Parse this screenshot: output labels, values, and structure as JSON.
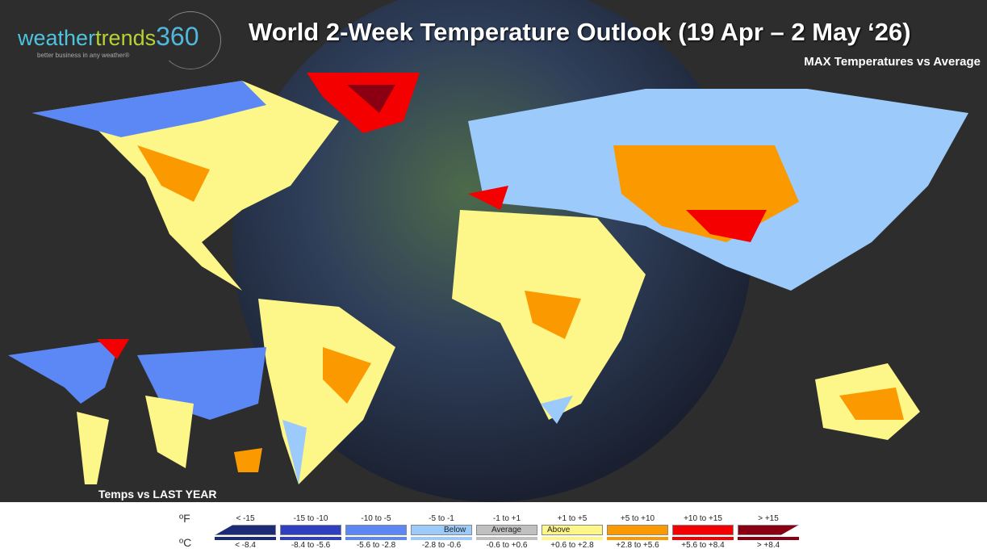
{
  "logo": {
    "part1": "weather",
    "part2": "trends",
    "part3": "360",
    "tagline": "better business in any weather®"
  },
  "title": "World 2-Week Temperature Outlook (19 Apr – 2 May ‘26)",
  "subtitle": "MAX Temperatures vs Average",
  "inset_label": "Temps vs LAST YEAR",
  "legend": {
    "unit_f": "ºF",
    "unit_c": "ºC",
    "bins": [
      {
        "f": "< -15",
        "c": "< -8.4",
        "color": "#1c2a78",
        "label": ""
      },
      {
        "f": "-15 to -10",
        "c": "-8.4 to -5.6",
        "color": "#2f3fbf",
        "label": ""
      },
      {
        "f": "-10 to -5",
        "c": "-5.6 to -2.8",
        "color": "#5b88f5",
        "label": ""
      },
      {
        "f": "-5 to -1",
        "c": "-2.8 to -0.6",
        "color": "#9ccbfb",
        "label": "Below"
      },
      {
        "f": "-1 to +1",
        "c": "-0.6 to +0.6",
        "color": "#c0c0c0",
        "label": "Average"
      },
      {
        "f": "+1 to +5",
        "c": "+0.6 to +2.8",
        "color": "#fdf689",
        "label": "Above"
      },
      {
        "f": "+5 to +10",
        "c": "+2.8 to +5.6",
        "color": "#fb9a00",
        "label": ""
      },
      {
        "f": "+10 to +15",
        "c": "+5.6 to +8.4",
        "color": "#f40000",
        "label": ""
      },
      {
        "f": "> +15",
        "c": "> +8.4",
        "color": "#8a0012",
        "label": ""
      }
    ]
  }
}
